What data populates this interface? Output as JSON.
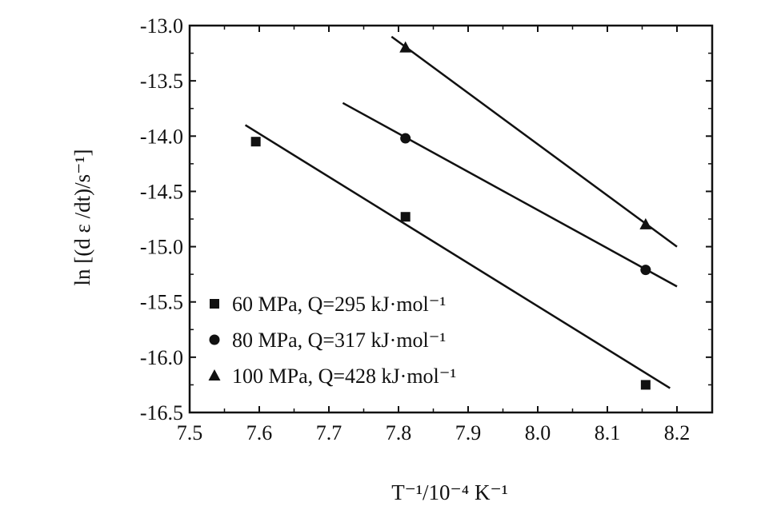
{
  "chart_data": {
    "type": "scatter",
    "title": "",
    "xlabel": "T⁻¹/10⁻⁴ K⁻¹",
    "ylabel": "ln [(d ε /dt)/s⁻¹]",
    "xlim": [
      7.5,
      8.25
    ],
    "ylim": [
      -16.5,
      -13.0
    ],
    "x_ticks": [
      "7.5",
      "7.6",
      "7.7",
      "7.8",
      "7.9",
      "8.0",
      "8.1",
      "8.2"
    ],
    "y_ticks": [
      "-13.0",
      "-13.5",
      "-14.0",
      "-14.5",
      "-15.0",
      "-15.5",
      "-16.0",
      "-16.5"
    ],
    "grid": false,
    "legend_position": "bottom-left",
    "series": [
      {
        "name": "60 MPa, Q=295 kJ·mol⁻¹",
        "marker": "square",
        "points": [
          [
            7.595,
            -14.05
          ],
          [
            7.81,
            -14.73
          ],
          [
            8.155,
            -16.25
          ]
        ],
        "fit_line": [
          [
            7.58,
            -13.9
          ],
          [
            8.19,
            -16.28
          ]
        ]
      },
      {
        "name": "80 MPa, Q=317 kJ·mol⁻¹",
        "marker": "circle",
        "points": [
          [
            7.81,
            -14.02
          ],
          [
            8.155,
            -15.21
          ]
        ],
        "fit_line": [
          [
            7.72,
            -13.7
          ],
          [
            8.2,
            -15.36
          ]
        ]
      },
      {
        "name": "100 MPa, Q=428 kJ·mol⁻¹",
        "marker": "triangle",
        "points": [
          [
            7.81,
            -13.2
          ],
          [
            8.155,
            -14.8
          ]
        ],
        "fit_line": [
          [
            7.79,
            -13.1
          ],
          [
            8.2,
            -15.0
          ]
        ]
      }
    ],
    "colors": {
      "marks": "#111111",
      "axes": "#111111"
    }
  }
}
